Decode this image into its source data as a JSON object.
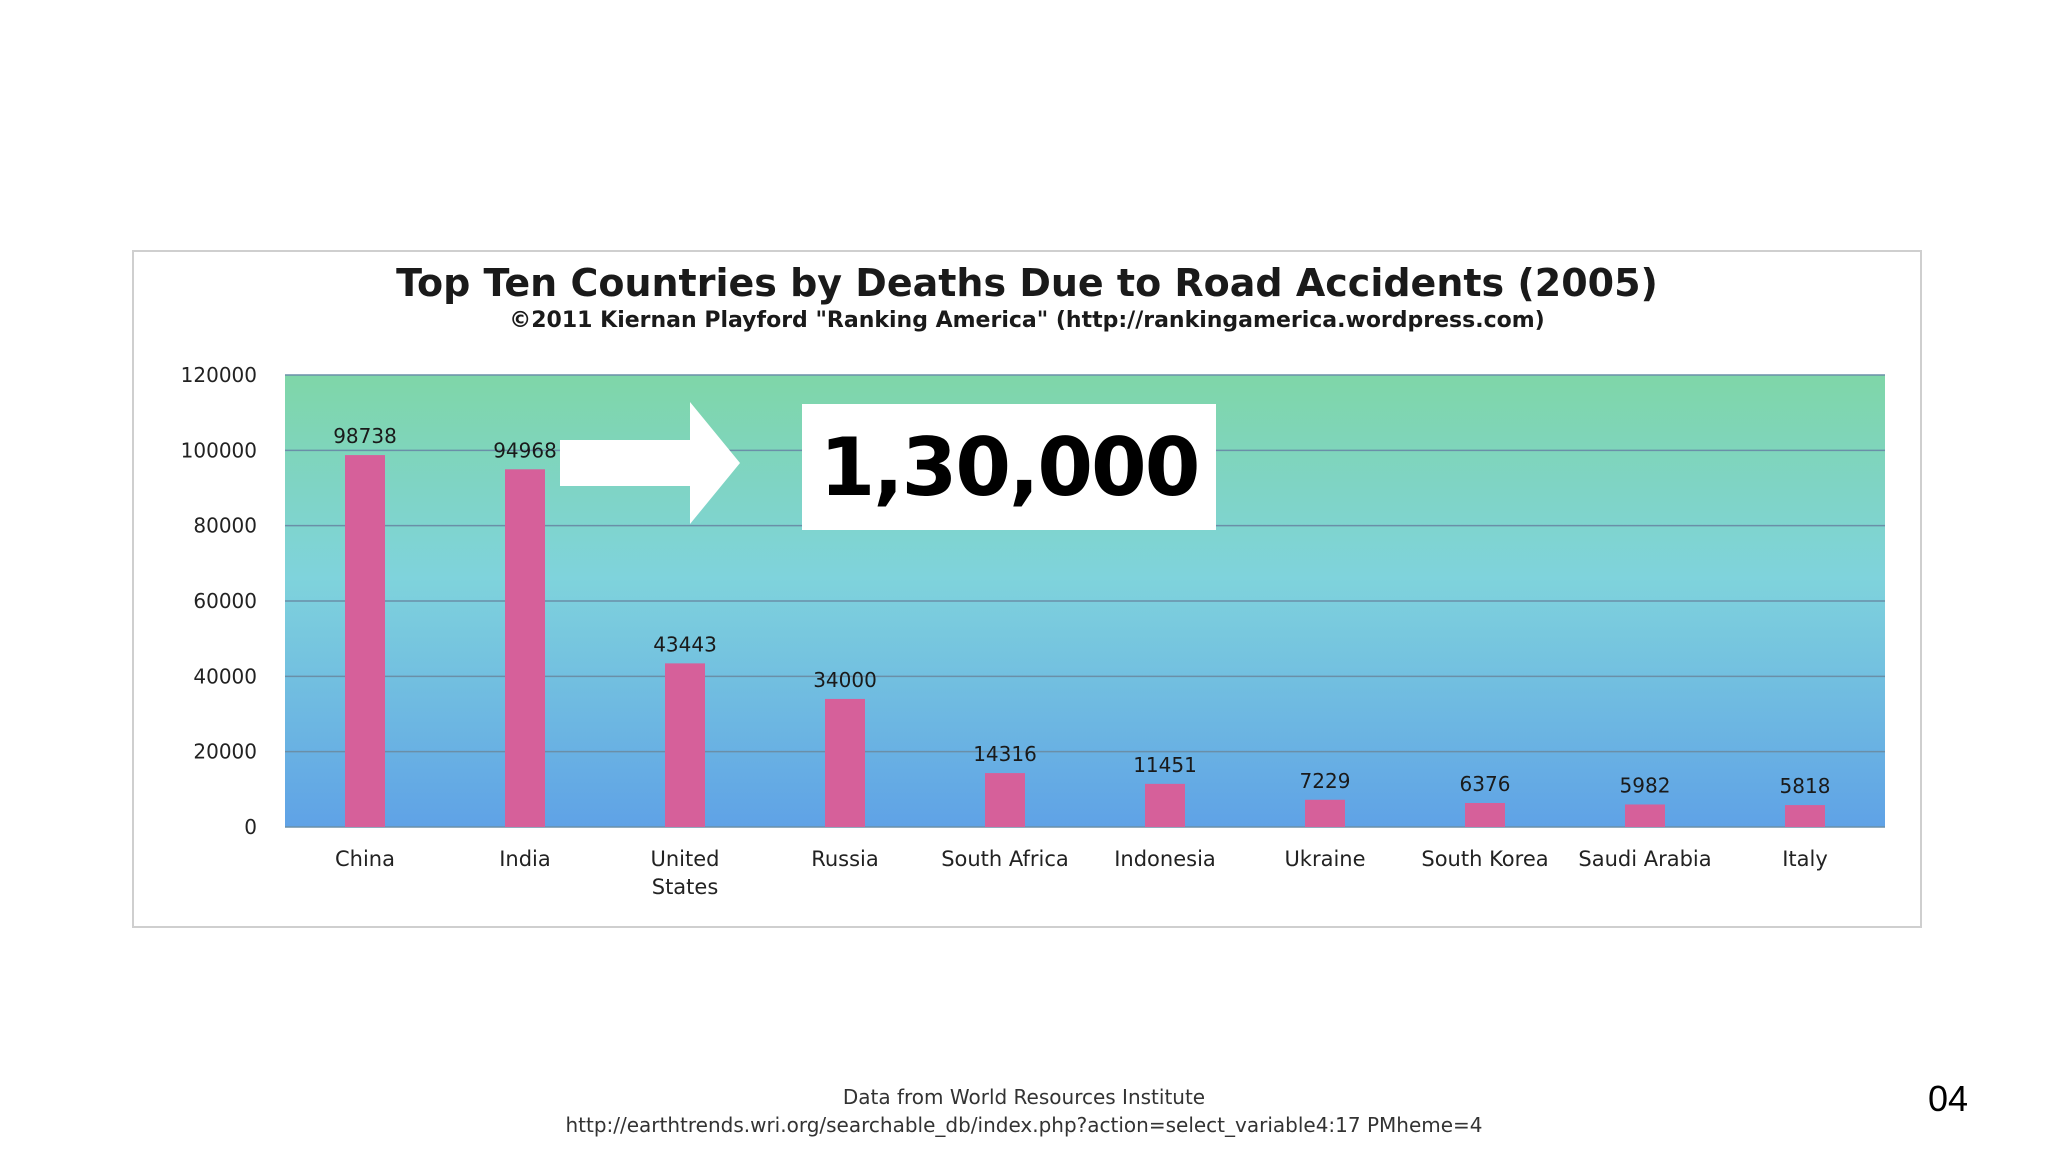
{
  "chart_data": {
    "type": "bar",
    "title": "Top Ten Countries by Deaths Due to Road Accidents (2005)",
    "subtitle": "©2011 Kiernan Playford \"Ranking America\" (http://rankingamerica.wordpress.com)",
    "categories": [
      "China",
      "India",
      "United States",
      "Russia",
      "South Africa",
      "Indonesia",
      "Ukraine",
      "South Korea",
      "Saudi Arabia",
      "Italy"
    ],
    "values": [
      98738,
      94968,
      43443,
      34000,
      14316,
      11451,
      7229,
      6376,
      5982,
      5818
    ],
    "data_labels": [
      "98738",
      "94968",
      "43443",
      "34000",
      "14316",
      "11451",
      "7229",
      "6376",
      "5982",
      "5818"
    ],
    "yticks": [
      "0",
      "20000",
      "40000",
      "60000",
      "80000",
      "100000",
      "120000"
    ],
    "ylim": [
      0,
      120000
    ],
    "xlabel": "",
    "ylabel": "",
    "grid": true,
    "legend": false,
    "colors": {
      "bar": "#d6609a",
      "plot_top": "#7fd6a8",
      "plot_mid": "#7fd3dc",
      "plot_bottom": "#5fa2e6",
      "grid": "#6a8fa8"
    }
  },
  "callout": {
    "text": "1,30,000",
    "arrow": "right-arrow-icon"
  },
  "footer": {
    "line1": "Data from World Resources Institute",
    "line2": "http://earthtrends.wri.org/searchable_db/index.php?action=select_variable4:17 PMheme=4"
  },
  "page_number": "04"
}
